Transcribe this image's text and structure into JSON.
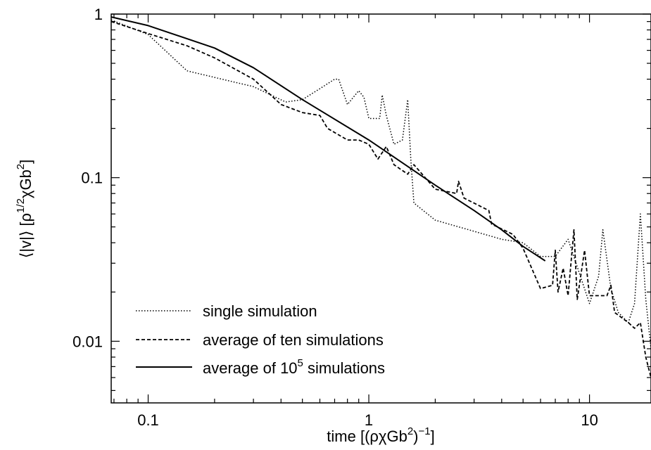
{
  "chart_data": {
    "type": "line",
    "xlabel": {
      "text": "time [(ρχGb",
      "sup1": "2",
      "mid": ")",
      "sup2": "−1",
      "end": "]"
    },
    "ylabel": {
      "text": "⟨|v|⟩ [ρ",
      "sup1": "1/2",
      "mid": "χGb",
      "sup2": "2",
      "end": "]"
    },
    "xscale": "log",
    "yscale": "log",
    "xlim": [
      0.068,
      19
    ],
    "ylim": [
      0.0042,
      1
    ],
    "x_ticks": [
      {
        "value": 0.1,
        "label": "0.1"
      },
      {
        "value": 1,
        "label": "1"
      },
      {
        "value": 10,
        "label": "10"
      }
    ],
    "y_ticks": [
      {
        "value": 0.01,
        "label": "0.01"
      },
      {
        "value": 0.1,
        "label": "0.1"
      },
      {
        "value": 1,
        "label": "1"
      }
    ],
    "grid": false,
    "legend_position": "bottom-left",
    "series": [
      {
        "name": "single simulation",
        "style": "dotted",
        "color": "#000000",
        "points": [
          [
            0.068,
            0.92
          ],
          [
            0.1,
            0.75
          ],
          [
            0.15,
            0.45
          ],
          [
            0.2,
            0.41
          ],
          [
            0.3,
            0.36
          ],
          [
            0.42,
            0.29
          ],
          [
            0.5,
            0.3
          ],
          [
            0.6,
            0.35
          ],
          [
            0.7,
            0.4
          ],
          [
            0.73,
            0.4
          ],
          [
            0.8,
            0.28
          ],
          [
            0.9,
            0.34
          ],
          [
            0.95,
            0.31
          ],
          [
            1.0,
            0.23
          ],
          [
            1.12,
            0.23
          ],
          [
            1.15,
            0.32
          ],
          [
            1.2,
            0.24
          ],
          [
            1.3,
            0.16
          ],
          [
            1.42,
            0.17
          ],
          [
            1.5,
            0.3
          ],
          [
            1.55,
            0.13
          ],
          [
            1.6,
            0.07
          ],
          [
            2.0,
            0.055
          ],
          [
            3.0,
            0.047
          ],
          [
            4.0,
            0.042
          ],
          [
            5.0,
            0.04
          ],
          [
            6.0,
            0.033
          ],
          [
            7.0,
            0.033
          ],
          [
            8.0,
            0.042
          ],
          [
            9.0,
            0.026
          ],
          [
            10.0,
            0.017
          ],
          [
            11.0,
            0.025
          ],
          [
            11.5,
            0.048
          ],
          [
            12.5,
            0.021
          ],
          [
            13.5,
            0.015
          ],
          [
            15.0,
            0.013
          ],
          [
            16.0,
            0.017
          ],
          [
            17.0,
            0.06
          ],
          [
            18.0,
            0.018
          ],
          [
            19.0,
            0.009
          ]
        ]
      },
      {
        "name": "average of ten simulations",
        "style": "dashed",
        "color": "#000000",
        "points": [
          [
            0.068,
            0.9
          ],
          [
            0.1,
            0.76
          ],
          [
            0.15,
            0.64
          ],
          [
            0.2,
            0.54
          ],
          [
            0.3,
            0.4
          ],
          [
            0.4,
            0.28
          ],
          [
            0.5,
            0.25
          ],
          [
            0.6,
            0.24
          ],
          [
            0.65,
            0.2
          ],
          [
            0.8,
            0.17
          ],
          [
            0.9,
            0.17
          ],
          [
            1.0,
            0.16
          ],
          [
            1.1,
            0.13
          ],
          [
            1.2,
            0.155
          ],
          [
            1.3,
            0.12
          ],
          [
            1.5,
            0.105
          ],
          [
            1.6,
            0.12
          ],
          [
            2.0,
            0.085
          ],
          [
            2.5,
            0.08
          ],
          [
            2.55,
            0.095
          ],
          [
            2.7,
            0.075
          ],
          [
            3.5,
            0.063
          ],
          [
            3.6,
            0.052
          ],
          [
            4.5,
            0.045
          ],
          [
            5.0,
            0.037
          ],
          [
            6.0,
            0.021
          ],
          [
            6.8,
            0.022
          ],
          [
            7.0,
            0.036
          ],
          [
            7.2,
            0.02
          ],
          [
            7.6,
            0.028
          ],
          [
            8.0,
            0.019
          ],
          [
            8.5,
            0.048
          ],
          [
            8.8,
            0.018
          ],
          [
            9.5,
            0.036
          ],
          [
            10.0,
            0.019
          ],
          [
            12.0,
            0.019
          ],
          [
            12.5,
            0.022
          ],
          [
            13.0,
            0.015
          ],
          [
            15.0,
            0.013
          ],
          [
            16.0,
            0.012
          ],
          [
            17.0,
            0.013
          ],
          [
            18.0,
            0.008
          ],
          [
            19.0,
            0.006
          ]
        ]
      },
      {
        "name": "average of 10",
        "name_sup": "5",
        "name_end": " simulations",
        "style": "solid",
        "color": "#000000",
        "points": [
          [
            0.068,
            0.96
          ],
          [
            0.1,
            0.85
          ],
          [
            0.2,
            0.62
          ],
          [
            0.3,
            0.47
          ],
          [
            0.5,
            0.3
          ],
          [
            1.0,
            0.17
          ],
          [
            2.0,
            0.09
          ],
          [
            3.0,
            0.063
          ],
          [
            4.0,
            0.048
          ],
          [
            5.0,
            0.038
          ],
          [
            6.3,
            0.031
          ]
        ]
      }
    ]
  }
}
